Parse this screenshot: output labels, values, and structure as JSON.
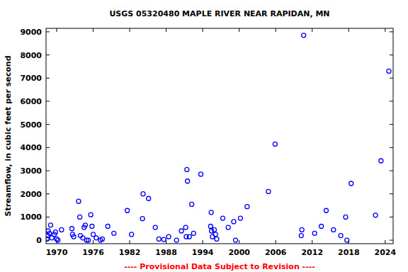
{
  "chart_data": {
    "type": "scatter",
    "title": "USGS 05320480 MAPLE RIVER NEAR RAPIDAN, MN",
    "y_label": "Streamflow, in cubic feet per second",
    "annotations": [
      "---- Provisional Data Subject to Revision ----"
    ],
    "x": [
      1968.4,
      1968.5,
      1968.6,
      1968.8,
      1969.0,
      1969.2,
      1969.6,
      1969.8,
      1970.0,
      1970.2,
      1970.8,
      1972.5,
      1972.6,
      1972.8,
      1973.6,
      1973.8,
      1973.9,
      1974.3,
      1974.5,
      1974.7,
      1974.9,
      1975.2,
      1975.6,
      1975.8,
      1976.0,
      1976.5,
      1977.2,
      1977.5,
      1978.4,
      1979.4,
      1981.6,
      1982.3,
      1984.1,
      1984.2,
      1985.1,
      1986.2,
      1986.8,
      1987.6,
      1988.4,
      1989.7,
      1990.5,
      1991.2,
      1991.3,
      1991.4,
      1991.5,
      1991.8,
      1992.2,
      1992.5,
      1993.7,
      1995.3,
      1995.4,
      1995.45,
      1995.6,
      1995.9,
      1996.1,
      1996.3,
      1997.3,
      1998.2,
      1999.1,
      1999.4,
      2000.2,
      2001.3,
      2004.8,
      2005.9,
      2010.2,
      2010.3,
      2010.6,
      2012.4,
      2013.5,
      2014.3,
      2015.5,
      2016.7,
      2017.5,
      2017.7,
      2018.4,
      2022.4,
      2023.3,
      2024.6
    ],
    "values": [
      50,
      200,
      400,
      300,
      650,
      100,
      250,
      350,
      50,
      0,
      450,
      500,
      250,
      150,
      1680,
      1000,
      200,
      100,
      550,
      650,
      0,
      0,
      1100,
      600,
      250,
      100,
      0,
      50,
      600,
      300,
      1280,
      250,
      930,
      2000,
      1800,
      550,
      50,
      30,
      150,
      0,
      400,
      550,
      150,
      3050,
      2550,
      150,
      1550,
      300,
      2850,
      600,
      1200,
      400,
      150,
      450,
      250,
      50,
      950,
      550,
      800,
      0,
      950,
      1450,
      2100,
      4150,
      200,
      450,
      8850,
      300,
      600,
      1280,
      450,
      200,
      1000,
      0,
      2450,
      1080,
      3430,
      7300
    ],
    "color": "#0000ff",
    "marker": "circle",
    "grid": false,
    "xlim": [
      1968.25,
      2025.3
    ],
    "xticks": [
      1970,
      1976,
      1982,
      1988,
      1994,
      2000,
      2006,
      2012,
      2018,
      2024
    ],
    "ylim": [
      -150,
      9150
    ],
    "yticks": [
      0,
      1000,
      2000,
      3000,
      4000,
      5000,
      6000,
      7000,
      8000,
      9000
    ]
  }
}
